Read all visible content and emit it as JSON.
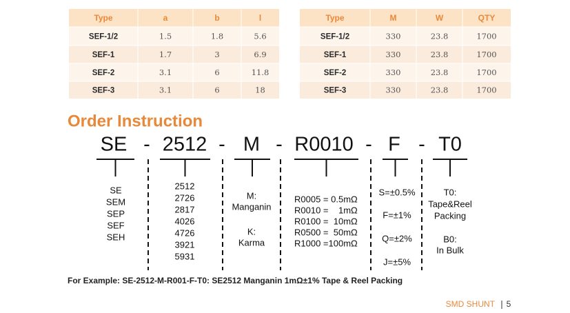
{
  "table_left": {
    "columns": [
      "Type",
      "a",
      "b",
      "l"
    ],
    "rows": [
      [
        "SEF-1/2",
        "1.5",
        "1.8",
        "5.6"
      ],
      [
        "SEF-1",
        "1.7",
        "3",
        "6.9"
      ],
      [
        "SEF-2",
        "3.1",
        "6",
        "11.8"
      ],
      [
        "SEF-3",
        "3.1",
        "6",
        "18"
      ]
    ]
  },
  "table_right": {
    "columns": [
      "Type",
      "M",
      "W",
      "QTY"
    ],
    "rows": [
      [
        "SEF-1/2",
        "330",
        "23.8",
        "1700"
      ],
      [
        "SEF-1",
        "330",
        "23.8",
        "1700"
      ],
      [
        "SEF-2",
        "330",
        "23.8",
        "1700"
      ],
      [
        "SEF-3",
        "330",
        "23.8",
        "1700"
      ]
    ]
  },
  "order_instruction": {
    "title": "Order Instruction",
    "code": [
      "SE",
      "-",
      "2512",
      "-",
      "M",
      "-",
      "R0010",
      "-",
      "F",
      "-",
      "T0"
    ],
    "descriptions": [
      [
        "SE",
        "SEM",
        "SEP",
        "SEF",
        "SEH"
      ],
      [
        "2512",
        "2726",
        "2817",
        "4026",
        "4726",
        "3921",
        "5931"
      ],
      [
        "M:",
        "Manganin",
        "K:",
        "Karma"
      ],
      [
        "R0005 = 0.5mΩ",
        "R0010 =    1mΩ",
        "R0100 =  10mΩ",
        "R0500 =  50mΩ",
        "R1000 =100mΩ"
      ],
      [
        "S=±0.5%",
        "F=±1%",
        "Q=±2%",
        "J=±5%"
      ],
      [
        "T0:",
        "Tape&Reel",
        "Packing",
        "B0:",
        "In Bulk"
      ]
    ],
    "example": "For Example: SE-2512-M-R001-F-T0: SE2512 Manganin 1mΩ±1% Tape & Reel Packing"
  },
  "footer": {
    "label": "SMD SHUNT",
    "page": "5"
  }
}
